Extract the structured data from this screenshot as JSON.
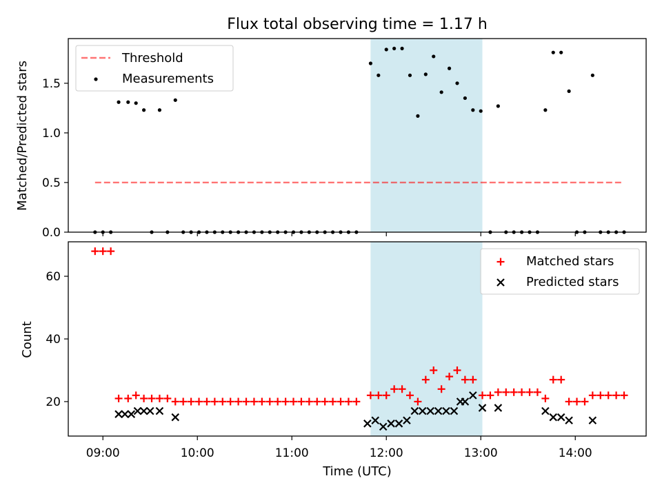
{
  "title": "Flux total observing time = 1.17 h",
  "x_axis": {
    "label": "Time (UTC)",
    "ticks": [
      "09:00",
      "10:00",
      "11:00",
      "12:00",
      "13:00",
      "14:00"
    ],
    "range": [
      "08:38",
      "14:45"
    ]
  },
  "shaded_span": {
    "start": "11:50",
    "end": "13:01",
    "color": "#add8e6"
  },
  "colors": {
    "threshold": "#ff0000",
    "measurements": "#000000",
    "matched": "#ff0000",
    "predicted": "#000000",
    "span": "#add8e6"
  },
  "chart_data": [
    {
      "type": "scatter",
      "panel": "top",
      "ylabel": "Matched/Predicted stars",
      "ylim": [
        0,
        1.95
      ],
      "yticks": [
        "0.0",
        "0.5",
        "1.0",
        "1.5"
      ],
      "legend_placement": "top-left",
      "threshold": {
        "name": "Threshold",
        "value": 0.5,
        "x_start": "08:55",
        "x_end": "14:30"
      },
      "series": [
        {
          "name": "Measurements",
          "points": [
            [
              "08:55",
              0
            ],
            [
              "09:00",
              0
            ],
            [
              "09:05",
              0
            ],
            [
              "09:10",
              1.31
            ],
            [
              "09:16",
              1.31
            ],
            [
              "09:21",
              1.3
            ],
            [
              "09:26",
              1.23
            ],
            [
              "09:31",
              0
            ],
            [
              "09:36",
              1.23
            ],
            [
              "09:41",
              0
            ],
            [
              "09:46",
              1.33
            ],
            [
              "09:51",
              0
            ],
            [
              "09:56",
              0
            ],
            [
              "10:01",
              0
            ],
            [
              "10:06",
              0
            ],
            [
              "10:11",
              0
            ],
            [
              "10:16",
              0
            ],
            [
              "10:21",
              0
            ],
            [
              "10:26",
              0
            ],
            [
              "10:31",
              0
            ],
            [
              "10:36",
              0
            ],
            [
              "10:41",
              0
            ],
            [
              "10:46",
              0
            ],
            [
              "10:51",
              0
            ],
            [
              "10:56",
              0
            ],
            [
              "11:01",
              0
            ],
            [
              "11:06",
              0
            ],
            [
              "11:11",
              0
            ],
            [
              "11:16",
              0
            ],
            [
              "11:21",
              0
            ],
            [
              "11:26",
              0
            ],
            [
              "11:31",
              0
            ],
            [
              "11:36",
              0
            ],
            [
              "11:41",
              0
            ],
            [
              "11:50",
              1.7
            ],
            [
              "11:55",
              1.58
            ],
            [
              "12:00",
              1.84
            ],
            [
              "12:05",
              1.85
            ],
            [
              "12:10",
              1.85
            ],
            [
              "12:15",
              1.58
            ],
            [
              "12:20",
              1.17
            ],
            [
              "12:25",
              1.59
            ],
            [
              "12:30",
              1.77
            ],
            [
              "12:35",
              1.41
            ],
            [
              "12:40",
              1.65
            ],
            [
              "12:45",
              1.5
            ],
            [
              "12:50",
              1.35
            ],
            [
              "12:55",
              1.23
            ],
            [
              "13:00",
              1.22
            ],
            [
              "13:06",
              0
            ],
            [
              "13:11",
              1.27
            ],
            [
              "13:16",
              0
            ],
            [
              "13:21",
              0
            ],
            [
              "13:26",
              0
            ],
            [
              "13:31",
              0
            ],
            [
              "13:36",
              0
            ],
            [
              "13:41",
              1.23
            ],
            [
              "13:46",
              1.81
            ],
            [
              "13:51",
              1.81
            ],
            [
              "13:56",
              1.42
            ],
            [
              "14:01",
              0
            ],
            [
              "14:06",
              0
            ],
            [
              "14:11",
              1.58
            ],
            [
              "14:16",
              0
            ],
            [
              "14:21",
              0
            ],
            [
              "14:26",
              0
            ],
            [
              "14:31",
              0
            ]
          ]
        }
      ]
    },
    {
      "type": "scatter",
      "panel": "bottom",
      "ylabel": "Count",
      "ylim": [
        9,
        71
      ],
      "yticks": [
        "20",
        "40",
        "60"
      ],
      "legend_placement": "top-right",
      "series": [
        {
          "name": "Matched stars",
          "marker": "+",
          "points": [
            [
              "08:55",
              68
            ],
            [
              "09:00",
              68
            ],
            [
              "09:05",
              68
            ],
            [
              "09:10",
              21
            ],
            [
              "09:16",
              21
            ],
            [
              "09:21",
              22
            ],
            [
              "09:26",
              21
            ],
            [
              "09:31",
              21
            ],
            [
              "09:36",
              21
            ],
            [
              "09:41",
              21
            ],
            [
              "09:46",
              20
            ],
            [
              "09:51",
              20
            ],
            [
              "09:56",
              20
            ],
            [
              "10:01",
              20
            ],
            [
              "10:06",
              20
            ],
            [
              "10:11",
              20
            ],
            [
              "10:16",
              20
            ],
            [
              "10:21",
              20
            ],
            [
              "10:26",
              20
            ],
            [
              "10:31",
              20
            ],
            [
              "10:36",
              20
            ],
            [
              "10:41",
              20
            ],
            [
              "10:46",
              20
            ],
            [
              "10:51",
              20
            ],
            [
              "10:56",
              20
            ],
            [
              "11:01",
              20
            ],
            [
              "11:06",
              20
            ],
            [
              "11:11",
              20
            ],
            [
              "11:16",
              20
            ],
            [
              "11:21",
              20
            ],
            [
              "11:26",
              20
            ],
            [
              "11:31",
              20
            ],
            [
              "11:36",
              20
            ],
            [
              "11:41",
              20
            ],
            [
              "11:50",
              22
            ],
            [
              "11:55",
              22
            ],
            [
              "12:00",
              22
            ],
            [
              "12:05",
              24
            ],
            [
              "12:10",
              24
            ],
            [
              "12:15",
              22
            ],
            [
              "12:20",
              20
            ],
            [
              "12:25",
              27
            ],
            [
              "12:30",
              30
            ],
            [
              "12:35",
              24
            ],
            [
              "12:40",
              28
            ],
            [
              "12:45",
              30
            ],
            [
              "12:50",
              27
            ],
            [
              "12:55",
              27
            ],
            [
              "13:06",
              22
            ],
            [
              "13:01",
              22
            ],
            [
              "13:11",
              23
            ],
            [
              "13:16",
              23
            ],
            [
              "13:21",
              23
            ],
            [
              "13:26",
              23
            ],
            [
              "13:31",
              23
            ],
            [
              "13:36",
              23
            ],
            [
              "13:41",
              21
            ],
            [
              "13:46",
              27
            ],
            [
              "13:51",
              27
            ],
            [
              "13:56",
              20
            ],
            [
              "14:01",
              20
            ],
            [
              "14:06",
              20
            ],
            [
              "14:11",
              22
            ],
            [
              "14:16",
              22
            ],
            [
              "14:21",
              22
            ],
            [
              "14:26",
              22
            ],
            [
              "14:31",
              22
            ]
          ]
        },
        {
          "name": "Predicted stars",
          "marker": "x",
          "points": [
            [
              "09:10",
              16
            ],
            [
              "09:14",
              16
            ],
            [
              "09:18",
              16
            ],
            [
              "09:22",
              17
            ],
            [
              "09:26",
              17
            ],
            [
              "09:30",
              17
            ],
            [
              "09:36",
              17
            ],
            [
              "09:46",
              15
            ],
            [
              "11:48",
              13
            ],
            [
              "11:53",
              14
            ],
            [
              "11:58",
              12
            ],
            [
              "12:03",
              13
            ],
            [
              "12:08",
              13
            ],
            [
              "12:13",
              14
            ],
            [
              "12:18",
              17
            ],
            [
              "12:23",
              17
            ],
            [
              "12:28",
              17
            ],
            [
              "12:33",
              17
            ],
            [
              "12:38",
              17
            ],
            [
              "12:43",
              17
            ],
            [
              "12:47",
              20
            ],
            [
              "12:50",
              20
            ],
            [
              "12:55",
              22
            ],
            [
              "13:01",
              18
            ],
            [
              "13:11",
              18
            ],
            [
              "13:41",
              17
            ],
            [
              "13:46",
              15
            ],
            [
              "13:51",
              15
            ],
            [
              "13:56",
              14
            ],
            [
              "14:11",
              14
            ]
          ]
        }
      ]
    }
  ]
}
